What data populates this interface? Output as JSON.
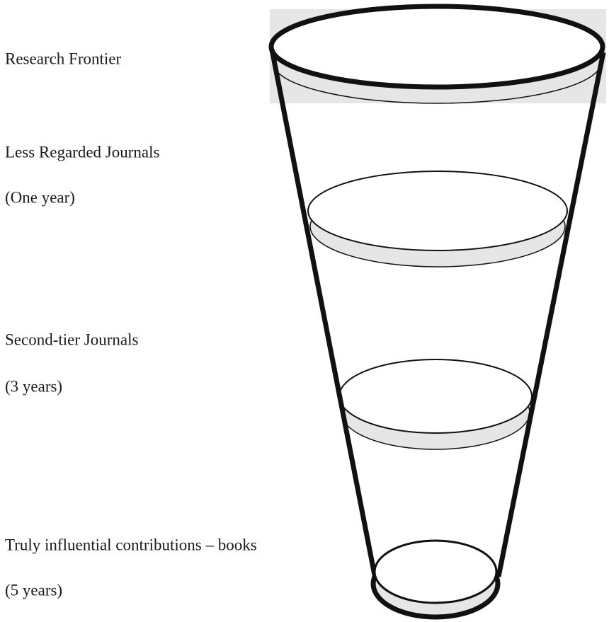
{
  "levels": [
    {
      "label": "Research Frontier"
    },
    {
      "label": "Less Regarded Journals",
      "period": "(One year)"
    },
    {
      "label": "Second-tier Journals",
      "period": "(3 years)"
    },
    {
      "label": "Truly influential contributions – books",
      "period": "(5 years)"
    }
  ]
}
